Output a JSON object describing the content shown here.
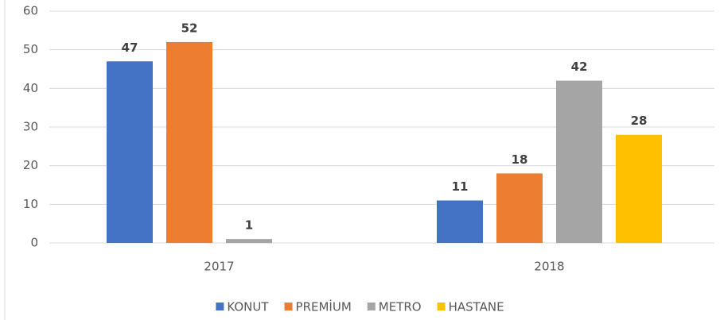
{
  "chart_data": {
    "type": "bar",
    "categories": [
      "2017",
      "2018"
    ],
    "series": [
      {
        "name": "KONUT",
        "color": "#4472c4",
        "values": [
          47,
          11
        ]
      },
      {
        "name": "PREMİUM",
        "color": "#ed7d31",
        "values": [
          52,
          18
        ]
      },
      {
        "name": "METRO",
        "color": "#a5a5a5",
        "values": [
          1,
          42
        ]
      },
      {
        "name": "HASTANE",
        "color": "#ffc000",
        "values": [
          null,
          28
        ]
      }
    ],
    "ylim": [
      0,
      60
    ],
    "yticks": [
      0,
      10,
      20,
      30,
      40,
      50,
      60
    ],
    "grid": true,
    "legend": "bottom"
  }
}
